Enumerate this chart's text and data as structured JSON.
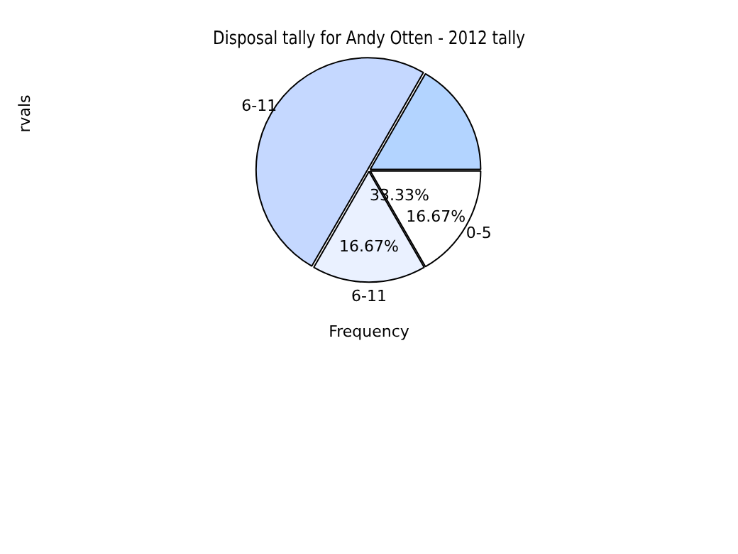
{
  "chart_data": {
    "type": "pie",
    "title": "Disposal tally for Andy Otten - 2012 tally",
    "xlabel": "Frequency",
    "ylabel": "rvals",
    "categories": [
      "0-5",
      "6-11",
      "6-11",
      null
    ],
    "values": [
      16.67,
      16.67,
      50,
      16.67
    ],
    "colors": [
      "#ffffff",
      "#eaf1ff",
      "#c5d8ff",
      "#b3d4ff"
    ],
    "value_labels": [
      "16.67%",
      "16.67%",
      null,
      null
    ],
    "annotations": [
      "33.33%"
    ],
    "legend": false
  }
}
